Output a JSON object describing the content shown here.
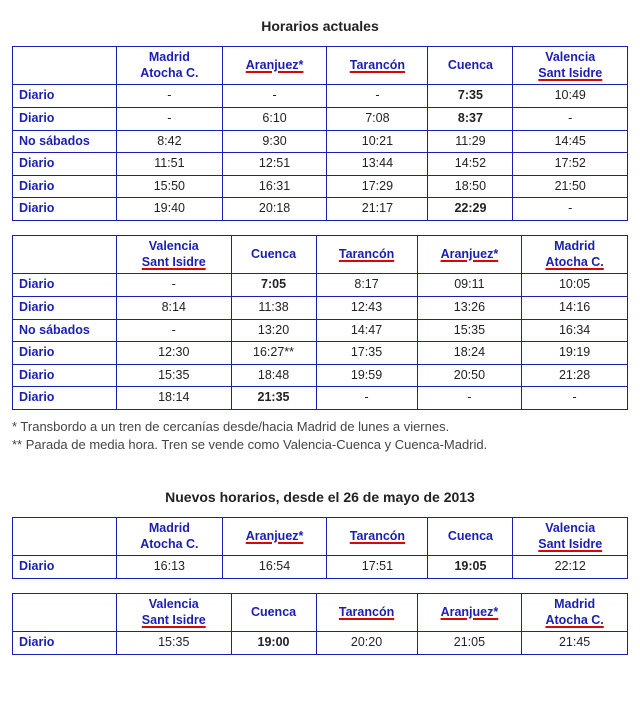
{
  "section1_title": "Horarios actuales",
  "section2_title": "Nuevos horarios, desde el 26 de mayo de 2013",
  "footnote1": "* Transbordo a un tren de cercanías desde/hacia Madrid de lunes a viernes.",
  "footnote2": "** Parada de media hora. Tren se vende como Valencia-Cuenca y Cuenca-Madrid.",
  "col_width_first": "95px",
  "headers_MA": {
    "madrid": {
      "l1": "Madrid",
      "l2": "Atocha C.",
      "u2": false
    },
    "aranjuez": {
      "l1": "Aranjuez*",
      "l2": "",
      "u1": true
    },
    "tarancon": {
      "l1": "Tarancón",
      "l2": "",
      "u1": true
    },
    "cuenca": {
      "l1": "Cuenca",
      "l2": "",
      "u1": false
    },
    "valencia": {
      "l1": "Valencia",
      "l2": "Sant Isidre",
      "u2": true
    }
  },
  "headers_VA": {
    "valencia": {
      "l1": "Valencia",
      "l2": "Sant Isidre",
      "u2": true
    },
    "cuenca": {
      "l1": "Cuenca",
      "l2": "",
      "u1": false
    },
    "tarancon": {
      "l1": "Tarancón",
      "l2": "",
      "u1": true
    },
    "aranjuez": {
      "l1": "Aranjuez*",
      "l2": "",
      "u1": true
    },
    "madrid": {
      "l1": "Madrid",
      "l2": "Atocha C.",
      "u2": true
    }
  },
  "table1": {
    "order": [
      "madrid",
      "aranjuez",
      "tarancon",
      "cuenca",
      "valencia"
    ],
    "rows": [
      {
        "label": "Diario",
        "cells": [
          "-",
          "-",
          "-",
          "7:35",
          "10:49"
        ],
        "bold": [
          false,
          false,
          false,
          true,
          false
        ]
      },
      {
        "label": "Diario",
        "cells": [
          "-",
          "6:10",
          "7:08",
          "8:37",
          "-"
        ],
        "bold": [
          false,
          false,
          false,
          true,
          false
        ]
      },
      {
        "label": "No sábados",
        "cells": [
          "8:42",
          "9:30",
          "10:21",
          "11:29",
          "14:45"
        ],
        "bold": [
          false,
          false,
          false,
          false,
          false
        ]
      },
      {
        "label": "Diario",
        "cells": [
          "11:51",
          "12:51",
          "13:44",
          "14:52",
          "17:52"
        ],
        "bold": [
          false,
          false,
          false,
          false,
          false
        ]
      },
      {
        "label": "Diario",
        "cells": [
          "15:50",
          "16:31",
          "17:29",
          "18:50",
          "21:50"
        ],
        "bold": [
          false,
          false,
          false,
          false,
          false
        ]
      },
      {
        "label": "Diario",
        "cells": [
          "19:40",
          "20:18",
          "21:17",
          "22:29",
          "-"
        ],
        "bold": [
          false,
          false,
          false,
          true,
          false
        ]
      }
    ]
  },
  "table2": {
    "order": [
      "valencia",
      "cuenca",
      "tarancon",
      "aranjuez",
      "madrid"
    ],
    "rows": [
      {
        "label": "Diario",
        "cells": [
          "-",
          "7:05",
          "8:17",
          "09:11",
          "10:05"
        ],
        "bold": [
          false,
          true,
          false,
          false,
          false
        ]
      },
      {
        "label": "Diario",
        "cells": [
          "8:14",
          "11:38",
          "12:43",
          "13:26",
          "14:16"
        ],
        "bold": [
          false,
          false,
          false,
          false,
          false
        ]
      },
      {
        "label": "No sábados",
        "cells": [
          "-",
          "13:20",
          "14:47",
          "15:35",
          "16:34"
        ],
        "bold": [
          false,
          false,
          false,
          false,
          false
        ]
      },
      {
        "label": "Diario",
        "cells": [
          "12:30",
          "16:27**",
          "17:35",
          "18:24",
          "19:19"
        ],
        "bold": [
          false,
          false,
          false,
          false,
          false
        ]
      },
      {
        "label": "Diario",
        "cells": [
          "15:35",
          "18:48",
          "19:59",
          "20:50",
          "21:28"
        ],
        "bold": [
          false,
          false,
          false,
          false,
          false
        ]
      },
      {
        "label": "Diario",
        "cells": [
          "18:14",
          "21:35",
          "-",
          "-",
          "-"
        ],
        "bold": [
          false,
          true,
          false,
          false,
          false
        ]
      }
    ]
  },
  "table3": {
    "order": [
      "madrid",
      "aranjuez",
      "tarancon",
      "cuenca",
      "valencia"
    ],
    "rows": [
      {
        "label": "Diario",
        "cells": [
          "16:13",
          "16:54",
          "17:51",
          "19:05",
          "22:12"
        ],
        "bold": [
          false,
          false,
          false,
          true,
          false
        ]
      }
    ]
  },
  "table4": {
    "order": [
      "valencia",
      "cuenca",
      "tarancon",
      "aranjuez",
      "madrid"
    ],
    "rows": [
      {
        "label": "Diario",
        "cells": [
          "15:35",
          "19:00",
          "20:20",
          "21:05",
          "21:45"
        ],
        "bold": [
          false,
          true,
          false,
          false,
          false
        ]
      }
    ]
  }
}
